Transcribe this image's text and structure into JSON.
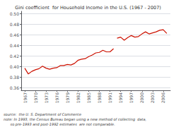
{
  "chart_data": {
    "type": "line",
    "title": "Gini coefficient  for Household Income in the U.S. (1967 - 2007)",
    "annotations": [
      "source:  the U. S. Department of Commerce",
      "note: In 1993, the Census Bureau began using a new method of collecting  data,",
      "      so pre-1993 and post-1992 estimates  are not comparable."
    ],
    "x": [
      1967,
      1968,
      1969,
      1970,
      1971,
      1972,
      1973,
      1974,
      1975,
      1976,
      1977,
      1978,
      1979,
      1980,
      1981,
      1982,
      1983,
      1984,
      1985,
      1986,
      1987,
      1988,
      1989,
      1990,
      1991,
      1992,
      1993,
      1994,
      1995,
      1996,
      1997,
      1998,
      1999,
      2000,
      2001,
      2002,
      2003,
      2004,
      2005,
      2006,
      2007
    ],
    "series": [
      {
        "color": "#cc1100",
        "values": [
          0.397,
          0.386,
          0.391,
          0.394,
          0.396,
          0.401,
          0.397,
          0.395,
          0.397,
          0.398,
          0.402,
          0.402,
          0.404,
          0.403,
          0.406,
          0.412,
          0.414,
          0.415,
          0.419,
          0.422,
          0.426,
          0.427,
          0.431,
          0.428,
          0.428,
          0.434,
          null,
          null,
          null,
          null,
          null,
          null,
          null,
          null,
          null,
          null,
          null,
          null,
          null,
          null,
          null
        ]
      },
      {
        "color": "#cc1100",
        "values": [
          null,
          null,
          null,
          null,
          null,
          null,
          null,
          null,
          null,
          null,
          null,
          null,
          null,
          null,
          null,
          null,
          null,
          null,
          null,
          null,
          null,
          null,
          null,
          null,
          null,
          null,
          0.454,
          0.456,
          0.45,
          0.455,
          0.459,
          0.456,
          0.457,
          0.462,
          0.466,
          0.462,
          0.464,
          0.466,
          0.469,
          0.47,
          0.463
        ]
      }
    ],
    "xlim": [
      1966,
      2008
    ],
    "xticks": [
      1967,
      1970,
      1973,
      1976,
      1979,
      1982,
      1985,
      1988,
      1991,
      1994,
      1997,
      2000,
      2003,
      2006
    ],
    "ylim": [
      0.355,
      0.505
    ],
    "yticks": [
      0.36,
      0.38,
      {
        "value": 0.4,
        "label": "0.40"
      },
      0.42,
      0.44,
      0.46,
      0.48,
      {
        "value": 0.5,
        "label": "0.50"
      }
    ],
    "grid": true
  }
}
